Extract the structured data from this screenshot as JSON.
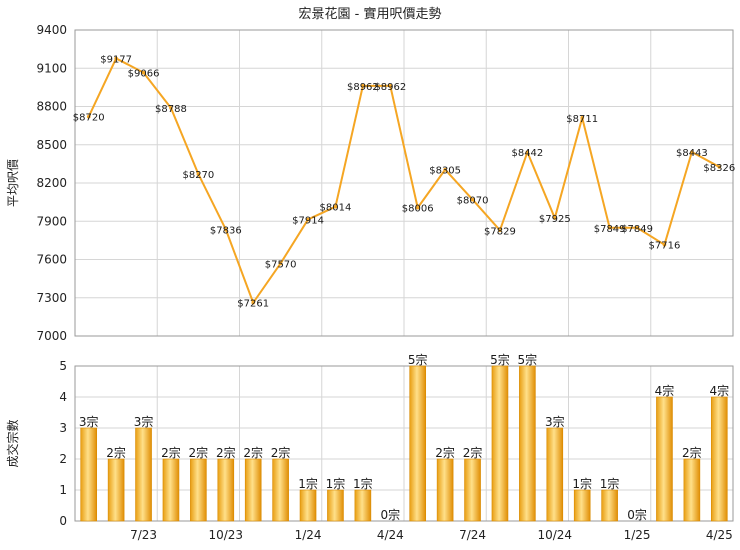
{
  "chart_data": [
    {
      "type": "line",
      "title": "宏景花園 - 實用呎價走勢",
      "ylabel": "平均呎價",
      "ylim": [
        7000,
        9400
      ],
      "yticks": [
        7000,
        7300,
        7600,
        7900,
        8200,
        8500,
        8800,
        9100,
        9400
      ],
      "label_prefix": "$",
      "series": [
        {
          "values": [
            8720,
            9177,
            9066,
            8788,
            8270,
            7836,
            7261,
            7570,
            7914,
            8014,
            8962,
            8962,
            8006,
            8305,
            8070,
            7829,
            8442,
            7925,
            8711,
            7849,
            7849,
            7716,
            8443,
            8326
          ]
        }
      ],
      "color": "#F5A623",
      "grid": true
    },
    {
      "type": "bar",
      "ylabel": "成交宗數",
      "ylim": [
        0,
        5
      ],
      "yticks": [
        0,
        1,
        2,
        3,
        4,
        5
      ],
      "unit_suffix": "宗",
      "values": [
        3,
        2,
        3,
        2,
        2,
        2,
        2,
        2,
        1,
        1,
        1,
        0,
        5,
        2,
        2,
        5,
        5,
        3,
        1,
        1,
        0,
        4,
        2,
        4
      ],
      "xtick_labels": [
        {
          "index": 2,
          "label": "7/23"
        },
        {
          "index": 5,
          "label": "10/23"
        },
        {
          "index": 8,
          "label": "1/24"
        },
        {
          "index": 11,
          "label": "4/24"
        },
        {
          "index": 14,
          "label": "7/24"
        },
        {
          "index": 17,
          "label": "10/24"
        },
        {
          "index": 20,
          "label": "1/25"
        },
        {
          "index": 23,
          "label": "4/25"
        }
      ],
      "color": "#F5A623",
      "grid": true
    }
  ]
}
